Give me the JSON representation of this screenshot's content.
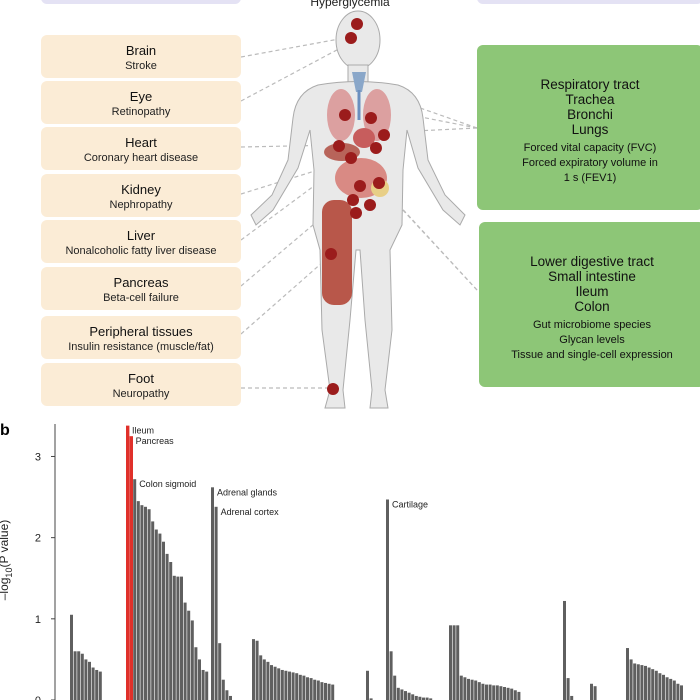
{
  "figure": {
    "center_label": "Hyperglycemia",
    "left_boxes": [
      {
        "name": "Brain",
        "detail": "Stroke"
      },
      {
        "name": "Eye",
        "detail": "Retinopathy"
      },
      {
        "name": "Heart",
        "detail": "Coronary heart disease"
      },
      {
        "name": "Kidney",
        "detail": "Nephropathy"
      },
      {
        "name": "Liver",
        "detail": "Nonalcoholic fatty liver disease"
      },
      {
        "name": "Pancreas",
        "detail": "Beta-cell failure"
      },
      {
        "name": "Peripheral tissues",
        "detail": "Insulin resistance (muscle/fat)"
      },
      {
        "name": "Foot",
        "detail": "Neuropathy"
      }
    ],
    "respiratory": {
      "headings": [
        "Respiratory tract",
        "Trachea",
        "Bronchi",
        "Lungs"
      ],
      "details": [
        "Forced vital capacity (FVC)",
        "Forced expiratory volume in",
        "1 s (FEV1)"
      ]
    },
    "digestive": {
      "headings": [
        "Lower digestive tract",
        "Small intestine",
        "Ileum",
        "Colon"
      ],
      "details": [
        "Gut microbiome species",
        "Glycan levels",
        "Tissue and single-cell expression"
      ]
    },
    "colors": {
      "organ_box": "#fbecd6",
      "green_box": "#8dc677",
      "marker": "#9b1c1c",
      "highlight_bar": "#e0302a",
      "bar": "#5f5f5f"
    }
  },
  "panel_b": {
    "label": "b"
  },
  "chart_data": {
    "type": "bar",
    "ylabel_parts": {
      "prefix": "–log",
      "sub": "10",
      "suffix": "(P value)"
    },
    "y_ticks": [
      "0",
      "1",
      "2",
      "3"
    ],
    "ylim": [
      0,
      3.4
    ],
    "groups": [
      [
        1.05,
        0.6,
        0.6,
        0.57,
        0.5,
        0.47,
        0.4,
        0.37,
        0.35
      ],
      [
        3.38,
        3.25,
        2.72,
        2.45,
        2.4,
        2.38,
        2.35,
        2.2,
        2.1,
        2.05,
        1.95,
        1.8,
        1.7,
        1.53,
        1.52,
        1.52,
        1.2,
        1.1,
        0.98,
        0.65,
        0.5,
        0.37,
        0.35
      ],
      [
        2.62,
        2.38,
        0.7,
        0.25,
        0.12,
        0.05
      ],
      [
        0.75,
        0.73,
        0.55,
        0.5,
        0.47,
        0.43,
        0.41,
        0.39,
        0.37,
        0.36,
        0.35,
        0.34,
        0.33,
        0.31,
        0.3,
        0.28,
        0.27,
        0.25,
        0.24,
        0.22,
        0.21,
        0.2,
        0.19
      ],
      [
        0.36,
        0.02
      ],
      [
        2.47,
        0.6,
        0.3,
        0.15,
        0.13,
        0.11,
        0.09,
        0.07,
        0.05,
        0.04,
        0.03,
        0.03,
        0.02
      ],
      [
        0.92,
        0.92,
        0.92,
        0.3,
        0.28,
        0.26,
        0.25,
        0.24,
        0.22,
        0.2,
        0.19,
        0.19,
        0.18,
        0.18,
        0.17,
        0.16,
        0.15,
        0.14,
        0.12,
        0.1
      ],
      [
        1.22,
        0.27,
        0.05
      ],
      [
        0.2,
        0.17
      ],
      [
        0.64,
        0.5,
        0.45,
        0.44,
        0.43,
        0.42,
        0.4,
        0.38,
        0.36,
        0.33,
        0.31,
        0.28,
        0.26,
        0.24,
        0.2,
        0.18
      ]
    ],
    "highlight": [
      [
        1,
        0
      ],
      [
        1,
        1
      ]
    ],
    "annotations": [
      {
        "text": "Ileum",
        "group": 1,
        "index": 0
      },
      {
        "text": "Pancreas",
        "group": 1,
        "index": 1
      },
      {
        "text": "Colon sigmoid",
        "group": 1,
        "index": 2
      },
      {
        "text": "Adrenal glands",
        "group": 2,
        "index": 0
      },
      {
        "text": "Adrenal cortex",
        "group": 2,
        "index": 1
      },
      {
        "text": "Cartilage",
        "group": 5,
        "index": 0
      }
    ]
  }
}
